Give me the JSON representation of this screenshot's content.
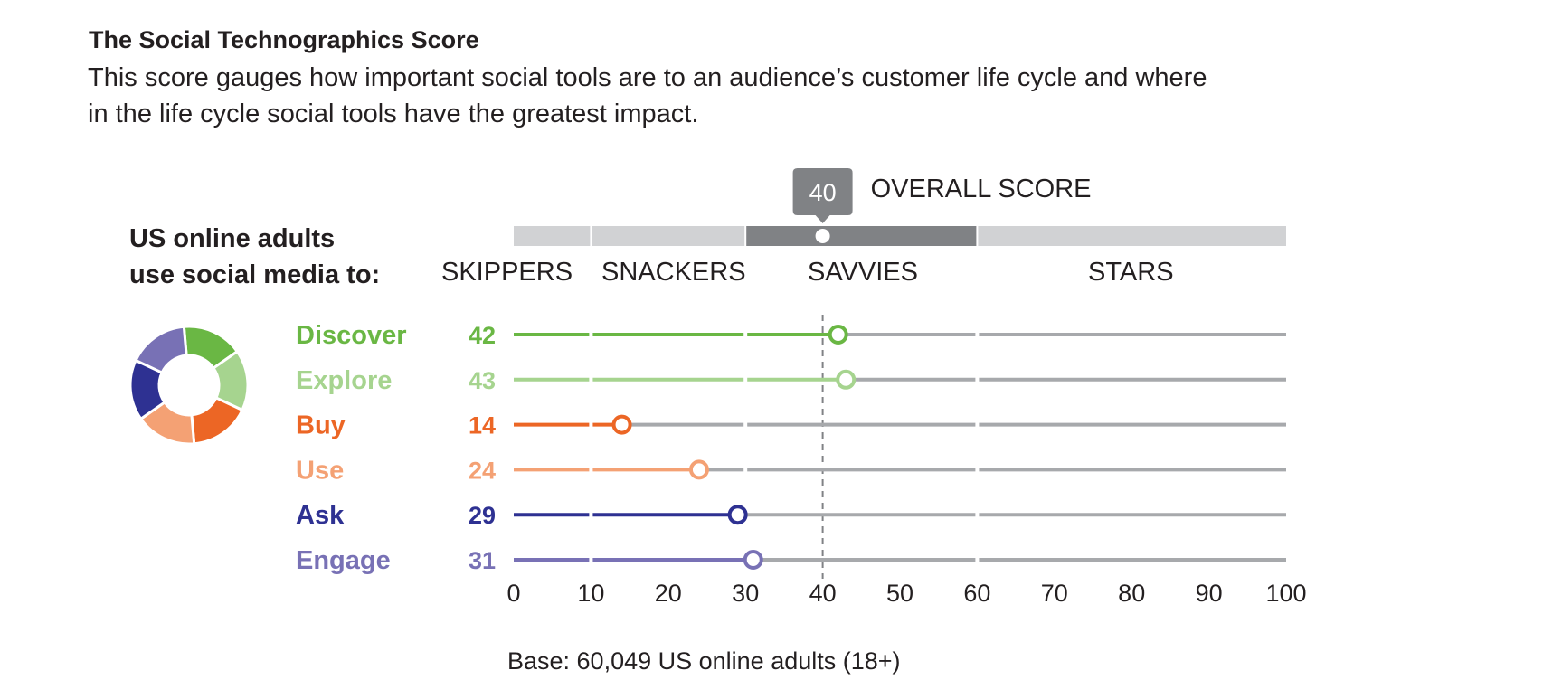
{
  "header": {
    "title": "The Social Technographics Score",
    "subtitle_line1": "This score gauges how important social tools are to an audience’s customer life cycle and where",
    "subtitle_line2": "in the life cycle social tools have the greatest impact."
  },
  "audience_label": {
    "line1": "US online adults",
    "line2": "use social media to:"
  },
  "overall": {
    "score": 40,
    "score_label": "40",
    "label": "OVERALL SCORE"
  },
  "footnote": "Base: 60,049 US online adults (18+)",
  "colors": {
    "track": "#a7a9ac",
    "band_light": "#d1d2d4",
    "band_dark": "#808285",
    "dashed": "#808285",
    "text": "#231f20"
  },
  "chart_data": {
    "type": "dot-line",
    "title": "The Social Technographics Score",
    "xlim": [
      0,
      100
    ],
    "ticks": [
      0,
      10,
      20,
      30,
      40,
      50,
      60,
      70,
      80,
      90,
      100
    ],
    "tick_labels": [
      "0",
      "10",
      "20",
      "30",
      "40",
      "50",
      "60",
      "70",
      "80",
      "90",
      "100"
    ],
    "reference_line": {
      "value": 40,
      "style": "dashed",
      "label": "OVERALL SCORE"
    },
    "segments": [
      {
        "name": "SKIPPERS",
        "from": 0,
        "to": 10,
        "highlighted": false
      },
      {
        "name": "SNACKERS",
        "from": 10,
        "to": 30,
        "highlighted": false
      },
      {
        "name": "SAVVIES",
        "from": 30,
        "to": 60,
        "highlighted": true
      },
      {
        "name": "STARS",
        "from": 60,
        "to": 100,
        "highlighted": false
      }
    ],
    "series": [
      {
        "name": "Discover",
        "value": 42,
        "label": "42",
        "color": "#6ab744"
      },
      {
        "name": "Explore",
        "value": 43,
        "label": "43",
        "color": "#a6d48f"
      },
      {
        "name": "Buy",
        "value": 14,
        "label": "14",
        "color": "#ec6625"
      },
      {
        "name": "Use",
        "value": 24,
        "label": "24",
        "color": "#f4a174"
      },
      {
        "name": "Ask",
        "value": 29,
        "label": "29",
        "color": "#2e3192"
      },
      {
        "name": "Engage",
        "value": 31,
        "label": "31",
        "color": "#7871b5"
      }
    ],
    "donut": {
      "slices": [
        "Discover",
        "Explore",
        "Buy",
        "Use",
        "Ask",
        "Engage"
      ],
      "values": [
        1,
        1,
        1,
        1,
        1,
        1
      ]
    }
  }
}
